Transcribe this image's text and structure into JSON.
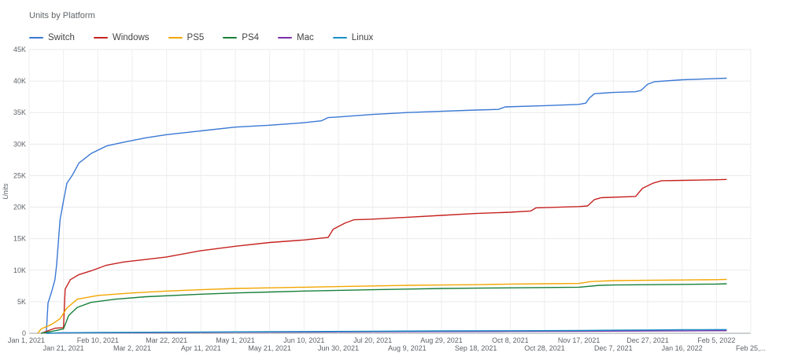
{
  "chart_data": {
    "type": "line",
    "title": "Units by Platform",
    "xlabel": "",
    "ylabel": "Units",
    "ylim": [
      0,
      45000
    ],
    "y_ticks": [
      0,
      5000,
      10000,
      15000,
      20000,
      25000,
      30000,
      35000,
      40000,
      45000
    ],
    "y_tick_labels": [
      "0",
      "5K",
      "10K",
      "15K",
      "20K",
      "25K",
      "30K",
      "35K",
      "40K",
      "45K"
    ],
    "xlim": [
      "2021-01-01",
      "2022-02-25"
    ],
    "x_ticks": [
      "2021-01-01",
      "2021-01-21",
      "2021-02-10",
      "2021-03-02",
      "2021-03-22",
      "2021-04-11",
      "2021-05-01",
      "2021-05-21",
      "2021-06-10",
      "2021-06-30",
      "2021-07-20",
      "2021-08-09",
      "2021-08-29",
      "2021-09-18",
      "2021-10-08",
      "2021-10-28",
      "2021-11-17",
      "2021-12-07",
      "2021-12-27",
      "2022-01-16",
      "2022-02-05",
      "2022-02-25"
    ],
    "x_tick_labels": [
      "Jan 1, 2021",
      "Jan 21, 2021",
      "Feb 10, 2021",
      "Mar 2, 2021",
      "Mar 22, 2021",
      "Apr 11, 2021",
      "May 1, 2021",
      "May 21, 2021",
      "Jun 10, 2021",
      "Jun 30, 2021",
      "Jul 20, 2021",
      "Aug 9, 2021",
      "Aug 29, 2021",
      "Sep 18, 2021",
      "Oct 8, 2021",
      "Oct 28, 2021",
      "Nov 17, 2021",
      "Dec 7, 2021",
      "Dec 27, 2021",
      "Jan 16, 2022",
      "Feb 5, 2022",
      "Feb 25,..."
    ],
    "grid": true,
    "legend_position": "top-left",
    "series": [
      {
        "name": "Switch",
        "color": "#3a78d4",
        "points": [
          [
            "2021-01-11",
            0
          ],
          [
            "2021-01-12",
            4800
          ],
          [
            "2021-01-14",
            6500
          ],
          [
            "2021-01-16",
            8500
          ],
          [
            "2021-01-17",
            10800
          ],
          [
            "2021-01-19",
            18000
          ],
          [
            "2021-01-21",
            21000
          ],
          [
            "2021-01-23",
            23800
          ],
          [
            "2021-01-26",
            25000
          ],
          [
            "2021-01-30",
            27000
          ],
          [
            "2021-02-06",
            28500
          ],
          [
            "2021-02-15",
            29700
          ],
          [
            "2021-02-25",
            30300
          ],
          [
            "2021-03-10",
            31000
          ],
          [
            "2021-03-22",
            31500
          ],
          [
            "2021-04-11",
            32100
          ],
          [
            "2021-05-01",
            32700
          ],
          [
            "2021-05-21",
            33000
          ],
          [
            "2021-06-10",
            33400
          ],
          [
            "2021-06-20",
            33700
          ],
          [
            "2021-06-24",
            34200
          ],
          [
            "2021-06-30",
            34300
          ],
          [
            "2021-07-20",
            34700
          ],
          [
            "2021-08-09",
            35000
          ],
          [
            "2021-08-29",
            35200
          ],
          [
            "2021-09-18",
            35400
          ],
          [
            "2021-10-01",
            35500
          ],
          [
            "2021-10-05",
            35900
          ],
          [
            "2021-10-28",
            36100
          ],
          [
            "2021-11-17",
            36300
          ],
          [
            "2021-11-21",
            36500
          ],
          [
            "2021-11-23",
            37300
          ],
          [
            "2021-11-26",
            38000
          ],
          [
            "2021-12-07",
            38200
          ],
          [
            "2021-12-20",
            38300
          ],
          [
            "2021-12-23",
            38500
          ],
          [
            "2021-12-27",
            39500
          ],
          [
            "2021-12-31",
            39900
          ],
          [
            "2022-01-16",
            40200
          ],
          [
            "2022-02-05",
            40400
          ],
          [
            "2022-02-11",
            40450
          ]
        ]
      },
      {
        "name": "Windows",
        "color": "#c5221f",
        "points": [
          [
            "2021-01-08",
            0
          ],
          [
            "2021-01-16",
            800
          ],
          [
            "2021-01-21",
            900
          ],
          [
            "2021-01-22",
            7000
          ],
          [
            "2021-01-25",
            8500
          ],
          [
            "2021-01-30",
            9300
          ],
          [
            "2021-02-06",
            9900
          ],
          [
            "2021-02-15",
            10800
          ],
          [
            "2021-02-25",
            11300
          ],
          [
            "2021-03-10",
            11700
          ],
          [
            "2021-03-22",
            12100
          ],
          [
            "2021-04-11",
            13100
          ],
          [
            "2021-05-01",
            13800
          ],
          [
            "2021-05-21",
            14400
          ],
          [
            "2021-06-10",
            14800
          ],
          [
            "2021-06-24",
            15200
          ],
          [
            "2021-06-27",
            16500
          ],
          [
            "2021-07-04",
            17500
          ],
          [
            "2021-07-09",
            18000
          ],
          [
            "2021-07-20",
            18100
          ],
          [
            "2021-08-09",
            18400
          ],
          [
            "2021-08-29",
            18700
          ],
          [
            "2021-09-18",
            19000
          ],
          [
            "2021-10-08",
            19200
          ],
          [
            "2021-10-20",
            19400
          ],
          [
            "2021-10-23",
            19900
          ],
          [
            "2021-11-17",
            20100
          ],
          [
            "2021-11-22",
            20200
          ],
          [
            "2021-11-26",
            21200
          ],
          [
            "2021-11-30",
            21500
          ],
          [
            "2021-12-20",
            21700
          ],
          [
            "2021-12-24",
            23000
          ],
          [
            "2021-12-30",
            23800
          ],
          [
            "2022-01-04",
            24200
          ],
          [
            "2022-01-16",
            24250
          ],
          [
            "2022-02-05",
            24350
          ],
          [
            "2022-02-11",
            24400
          ]
        ]
      },
      {
        "name": "PS5",
        "color": "#f2a600",
        "points": [
          [
            "2021-01-06",
            0
          ],
          [
            "2021-01-08",
            700
          ],
          [
            "2021-01-14",
            1400
          ],
          [
            "2021-01-19",
            2300
          ],
          [
            "2021-01-23",
            4000
          ],
          [
            "2021-01-29",
            5400
          ],
          [
            "2021-02-10",
            6000
          ],
          [
            "2021-03-02",
            6400
          ],
          [
            "2021-03-22",
            6700
          ],
          [
            "2021-04-11",
            6900
          ],
          [
            "2021-05-01",
            7100
          ],
          [
            "2021-05-21",
            7200
          ],
          [
            "2021-06-10",
            7300
          ],
          [
            "2021-06-30",
            7400
          ],
          [
            "2021-07-20",
            7500
          ],
          [
            "2021-08-09",
            7600
          ],
          [
            "2021-08-29",
            7650
          ],
          [
            "2021-09-18",
            7700
          ],
          [
            "2021-10-08",
            7800
          ],
          [
            "2021-10-28",
            7850
          ],
          [
            "2021-11-17",
            7900
          ],
          [
            "2021-11-24",
            8200
          ],
          [
            "2021-12-07",
            8350
          ],
          [
            "2021-12-27",
            8400
          ],
          [
            "2022-01-16",
            8450
          ],
          [
            "2022-02-05",
            8500
          ],
          [
            "2022-02-11",
            8550
          ]
        ]
      },
      {
        "name": "PS4",
        "color": "#188038",
        "points": [
          [
            "2021-01-08",
            0
          ],
          [
            "2021-01-16",
            400
          ],
          [
            "2021-01-21",
            700
          ],
          [
            "2021-01-24",
            2800
          ],
          [
            "2021-01-29",
            4100
          ],
          [
            "2021-02-06",
            4900
          ],
          [
            "2021-02-20",
            5400
          ],
          [
            "2021-03-10",
            5800
          ],
          [
            "2021-04-11",
            6200
          ],
          [
            "2021-05-01",
            6400
          ],
          [
            "2021-05-21",
            6550
          ],
          [
            "2021-06-10",
            6700
          ],
          [
            "2021-06-30",
            6800
          ],
          [
            "2021-07-20",
            6900
          ],
          [
            "2021-08-09",
            7000
          ],
          [
            "2021-08-29",
            7100
          ],
          [
            "2021-09-18",
            7150
          ],
          [
            "2021-10-08",
            7200
          ],
          [
            "2021-10-28",
            7250
          ],
          [
            "2021-11-17",
            7300
          ],
          [
            "2021-11-29",
            7600
          ],
          [
            "2021-12-07",
            7650
          ],
          [
            "2021-12-27",
            7700
          ],
          [
            "2022-01-16",
            7750
          ],
          [
            "2022-02-05",
            7800
          ],
          [
            "2022-02-11",
            7850
          ]
        ]
      },
      {
        "name": "Mac",
        "color": "#7b2fa8",
        "points": [
          [
            "2021-01-11",
            0
          ],
          [
            "2021-01-21",
            60
          ],
          [
            "2021-02-10",
            100
          ],
          [
            "2021-03-22",
            130
          ],
          [
            "2021-05-01",
            170
          ],
          [
            "2021-06-10",
            200
          ],
          [
            "2021-07-20",
            240
          ],
          [
            "2021-08-29",
            270
          ],
          [
            "2021-10-08",
            300
          ],
          [
            "2021-11-17",
            330
          ],
          [
            "2021-12-27",
            370
          ],
          [
            "2022-01-16",
            390
          ],
          [
            "2022-02-11",
            410
          ]
        ]
      },
      {
        "name": "Linux",
        "color": "#1a8fc6",
        "points": [
          [
            "2021-01-11",
            0
          ],
          [
            "2021-01-21",
            90
          ],
          [
            "2021-02-10",
            130
          ],
          [
            "2021-03-22",
            180
          ],
          [
            "2021-05-01",
            230
          ],
          [
            "2021-06-10",
            280
          ],
          [
            "2021-07-20",
            330
          ],
          [
            "2021-08-29",
            370
          ],
          [
            "2021-10-08",
            400
          ],
          [
            "2021-11-17",
            440
          ],
          [
            "2021-12-07",
            490
          ],
          [
            "2021-12-27",
            520
          ],
          [
            "2022-01-16",
            560
          ],
          [
            "2022-02-11",
            590
          ]
        ]
      }
    ]
  }
}
